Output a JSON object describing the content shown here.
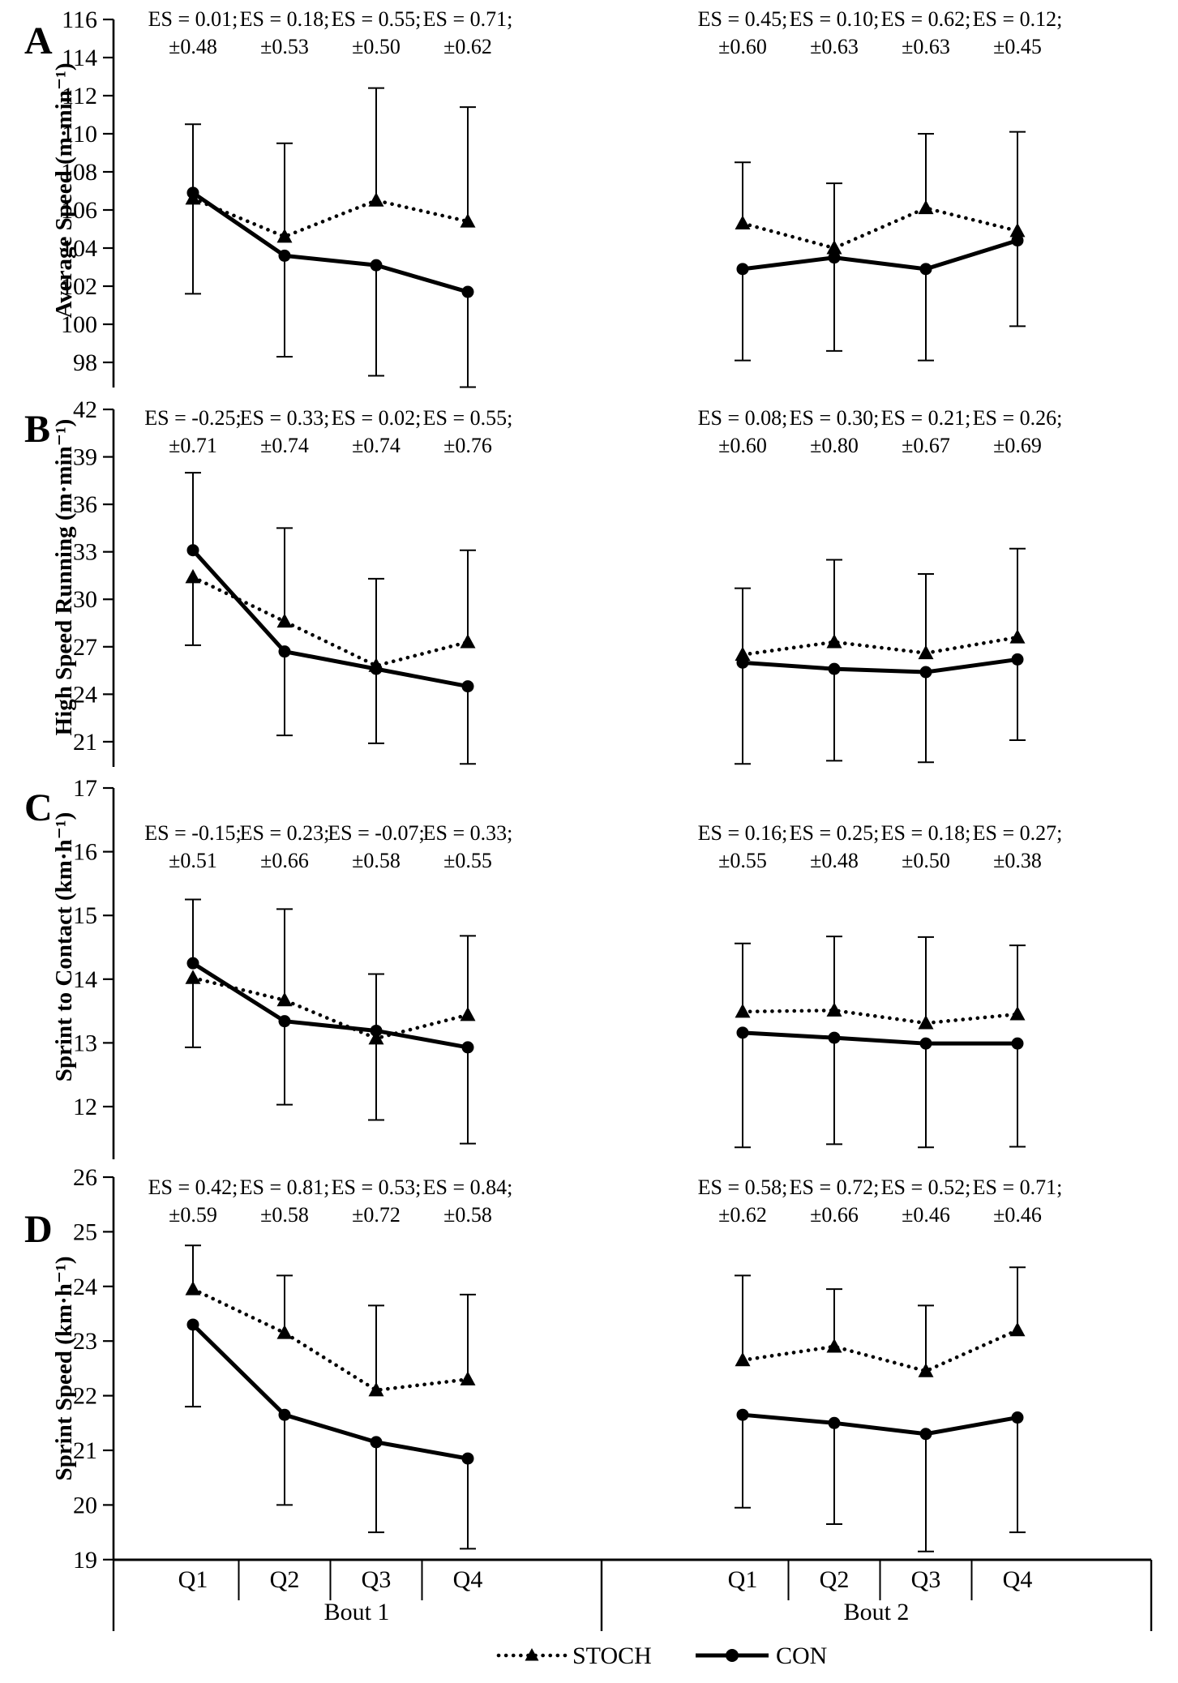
{
  "figure": {
    "background": "#ffffff",
    "ink_color": "#000000",
    "legend": [
      {
        "label": "STOCH",
        "marker": "triangle",
        "line": "dotted"
      },
      {
        "label": "CON",
        "marker": "circle",
        "line": "solid"
      }
    ],
    "x_axis": {
      "groups": [
        {
          "label": "Bout 1",
          "categories": [
            "Q1",
            "Q2",
            "Q3",
            "Q4"
          ]
        },
        {
          "label": "Bout 2",
          "categories": [
            "Q1",
            "Q2",
            "Q3",
            "Q4"
          ]
        }
      ]
    }
  },
  "chart_data": [
    {
      "type": "line",
      "panel": "A",
      "ylabel": "Average Speed (m·min⁻¹)",
      "yticks": [
        116,
        114,
        112,
        110,
        108,
        106,
        104,
        102,
        100,
        98
      ],
      "ylim": [
        96.4,
        116
      ],
      "categories": [
        "Q1",
        "Q2",
        "Q3",
        "Q4",
        "Q1",
        "Q2",
        "Q3",
        "Q4"
      ],
      "series": [
        {
          "name": "STOCH",
          "values": [
            106.6,
            104.6,
            106.5,
            105.4,
            105.3,
            104.0,
            106.1,
            104.9
          ]
        },
        {
          "name": "CON",
          "values": [
            106.9,
            103.6,
            103.1,
            101.7,
            102.9,
            103.5,
            102.9,
            104.4
          ]
        }
      ],
      "error_top": [
        110.5,
        109.5,
        112.4,
        111.4,
        108.5,
        107.4,
        110.0,
        110.1
      ],
      "error_bottom": [
        101.6,
        98.3,
        97.3,
        96.7,
        98.1,
        98.6,
        98.1,
        99.9
      ],
      "es_labels": [
        [
          "ES = 0.01;",
          "±0.48"
        ],
        [
          "ES = 0.18;",
          "±0.53"
        ],
        [
          "ES = 0.55;",
          "±0.50"
        ],
        [
          "ES = 0.71;",
          "±0.62"
        ],
        [
          "ES = 0.45;",
          "±0.60"
        ],
        [
          "ES = 0.10;",
          "±0.63"
        ],
        [
          "ES = 0.62;",
          "±0.63"
        ],
        [
          "ES = 0.12;",
          "±0.45"
        ]
      ]
    },
    {
      "type": "line",
      "panel": "B",
      "ylabel": "High Speed Running (m·min⁻¹)",
      "yticks": [
        42,
        39,
        36,
        33,
        30,
        27,
        24,
        21
      ],
      "ylim": [
        18.5,
        42
      ],
      "categories": [
        "Q1",
        "Q2",
        "Q3",
        "Q4",
        "Q1",
        "Q2",
        "Q3",
        "Q4"
      ],
      "series": [
        {
          "name": "STOCH",
          "values": [
            31.4,
            28.6,
            25.8,
            27.3,
            26.5,
            27.3,
            26.6,
            27.6
          ]
        },
        {
          "name": "CON",
          "values": [
            33.1,
            26.7,
            25.6,
            24.5,
            26.0,
            25.6,
            25.4,
            26.2
          ]
        }
      ],
      "error_top": [
        38.0,
        34.5,
        31.3,
        33.1,
        30.7,
        32.5,
        31.6,
        33.2
      ],
      "error_bottom": [
        27.1,
        21.4,
        20.9,
        19.6,
        19.6,
        19.8,
        19.7,
        21.1
      ],
      "es_labels": [
        [
          "ES = -0.25;",
          "±0.71"
        ],
        [
          "ES = 0.33;",
          "±0.74"
        ],
        [
          "ES = 0.02;",
          "±0.74"
        ],
        [
          "ES = 0.55;",
          "±0.76"
        ],
        [
          "ES = 0.08;",
          "±0.60"
        ],
        [
          "ES = 0.30;",
          "±0.80"
        ],
        [
          "ES = 0.21;",
          "±0.67"
        ],
        [
          "ES = 0.26;",
          "±0.69"
        ]
      ]
    },
    {
      "type": "line",
      "panel": "C",
      "ylabel": "Sprint to Contact (km·h⁻¹)",
      "yticks": [
        17,
        16,
        15,
        14,
        13,
        12
      ],
      "ylim": [
        11.2,
        17
      ],
      "categories": [
        "Q1",
        "Q2",
        "Q3",
        "Q4",
        "Q1",
        "Q2",
        "Q3",
        "Q4"
      ],
      "series": [
        {
          "name": "STOCH",
          "values": [
            14.02,
            13.67,
            13.07,
            13.44,
            13.49,
            13.51,
            13.31,
            13.45
          ]
        },
        {
          "name": "CON",
          "values": [
            14.25,
            13.34,
            13.19,
            12.93,
            13.16,
            13.08,
            12.99,
            12.99
          ]
        }
      ],
      "error_top": [
        15.25,
        15.1,
        14.08,
        14.68,
        14.56,
        14.67,
        14.66,
        14.53
      ],
      "error_bottom": [
        12.93,
        12.03,
        11.79,
        11.42,
        11.36,
        11.41,
        11.36,
        11.37
      ],
      "es_labels": [
        [
          "ES = -0.15;",
          "±0.51"
        ],
        [
          "ES = 0.23;",
          "±0.66"
        ],
        [
          "ES = -0.07;",
          "±0.58"
        ],
        [
          "ES = 0.33;",
          "±0.55"
        ],
        [
          "ES = 0.16;",
          "±0.55"
        ],
        [
          "ES = 0.25;",
          "±0.48"
        ],
        [
          "ES = 0.18;",
          "±0.50"
        ],
        [
          "ES = 0.27;",
          "±0.38"
        ]
      ]
    },
    {
      "type": "line",
      "panel": "D",
      "ylabel": "Sprint Speed (km·h⁻¹)",
      "yticks": [
        26,
        25,
        24,
        23,
        22,
        21,
        20,
        19
      ],
      "ylim": [
        19,
        26
      ],
      "categories": [
        "Q1",
        "Q2",
        "Q3",
        "Q4",
        "Q1",
        "Q2",
        "Q3",
        "Q4"
      ],
      "series": [
        {
          "name": "STOCH",
          "values": [
            23.95,
            23.15,
            22.1,
            22.3,
            22.65,
            22.9,
            22.45,
            23.2
          ]
        },
        {
          "name": "CON",
          "values": [
            23.3,
            21.65,
            21.15,
            20.85,
            21.65,
            21.5,
            21.3,
            21.6
          ]
        }
      ],
      "error_top": [
        24.75,
        24.2,
        23.65,
        23.85,
        24.2,
        23.95,
        23.65,
        24.35
      ],
      "error_bottom": [
        21.8,
        20.0,
        19.5,
        19.2,
        19.95,
        19.65,
        19.15,
        19.5
      ],
      "es_labels": [
        [
          "ES = 0.42;",
          "±0.59"
        ],
        [
          "ES = 0.81;",
          "±0.58"
        ],
        [
          "ES = 0.53;",
          "±0.72"
        ],
        [
          "ES = 0.84;",
          "±0.58"
        ],
        [
          "ES = 0.58;",
          "±0.62"
        ],
        [
          "ES = 0.72;",
          "±0.66"
        ],
        [
          "ES = 0.52;",
          "±0.46"
        ],
        [
          "ES = 0.71;",
          "±0.46"
        ]
      ]
    }
  ]
}
